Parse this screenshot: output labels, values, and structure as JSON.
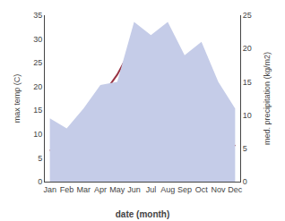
{
  "chart_data": {
    "type": "line",
    "categories": [
      "Jan",
      "Feb",
      "Mar",
      "Apr",
      "May",
      "Jun",
      "Jul",
      "Aug",
      "Sep",
      "Oct",
      "Nov",
      "Dec"
    ],
    "series": [
      {
        "type": "area",
        "axis": "y2",
        "color": "#c5cce8",
        "values": [
          9.5,
          8.0,
          11.0,
          14.5,
          15.0,
          24.0,
          22.0,
          24.0,
          19.0,
          21.0,
          15.0,
          11.0
        ]
      },
      {
        "type": "line",
        "color": "#993344",
        "values": [
          6.5,
          8.0,
          13.0,
          17.5,
          22.5,
          29.0,
          29.5,
          32.5,
          25.0,
          18.5,
          10.5,
          7.5
        ]
      }
    ],
    "xlabel": "date (month)",
    "ylabel": "max temp (C)",
    "y2label": "med. precipitation (kg/m2)",
    "ylim": [
      0,
      35
    ],
    "yticks": [
      0,
      5,
      10,
      15,
      20,
      25,
      30,
      35
    ],
    "y2lim": [
      0,
      25
    ],
    "y2ticks": [
      0,
      5,
      10,
      15,
      20,
      25
    ],
    "grid": false
  }
}
